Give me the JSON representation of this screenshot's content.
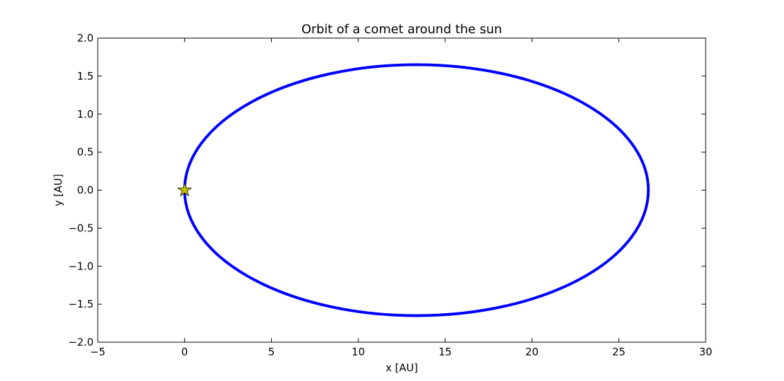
{
  "chart_data": {
    "type": "line",
    "title": "Orbit of a comet around the sun",
    "xlabel": "x [AU]",
    "ylabel": "y [AU]",
    "xlim": [
      -5,
      30
    ],
    "ylim": [
      -2.0,
      2.0
    ],
    "x_ticks": [
      -5,
      0,
      5,
      10,
      15,
      20,
      25,
      30
    ],
    "x_tick_labels": [
      "−5",
      "0",
      "5",
      "10",
      "15",
      "20",
      "25",
      "30"
    ],
    "y_ticks": [
      2.0,
      1.5,
      1.0,
      0.5,
      0.0,
      -0.5,
      -1.0,
      -1.5,
      -2.0
    ],
    "y_tick_labels": [
      "2.0",
      "1.5",
      "1.0",
      "0.5",
      "0.0",
      "−0.5",
      "−1.0",
      "−1.5",
      "−2.0"
    ],
    "grid": false,
    "orbit": {
      "shape": "ellipse",
      "center_x": 13.35,
      "center_y": 0.0,
      "semi_major_axis": 13.35,
      "semi_minor_axis": 1.65,
      "color": "#0000ff"
    },
    "sun": {
      "x": 0.0,
      "y": 0.0,
      "marker": "star",
      "color": "#bfbf00"
    }
  }
}
